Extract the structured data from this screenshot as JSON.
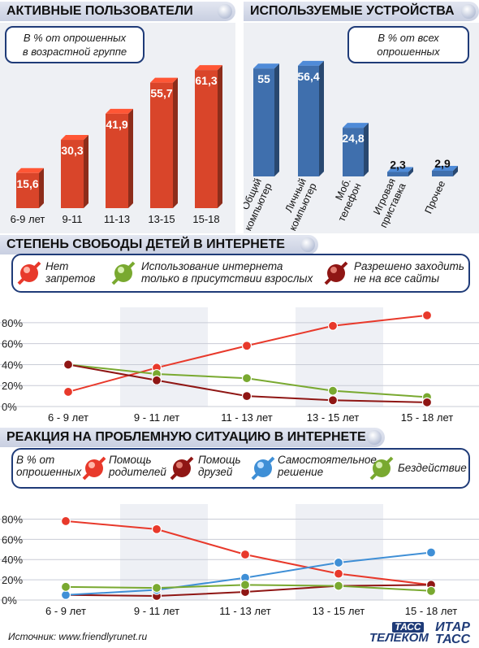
{
  "sections": {
    "active_users": "АКТИВНЫЕ ПОЛЬЗОВАТЕЛИ",
    "devices": "ИСПОЛЬЗУЕМЫЕ УСТРОЙСТВА",
    "freedom": "СТЕПЕНЬ СВОБОДЫ ДЕТЕЙ В ИНТЕРНЕТЕ",
    "reaction": "РЕАКЦИЯ НА ПРОБЛЕМНУЮ СИТУАЦИЮ В ИНТЕРНЕТЕ"
  },
  "notes": {
    "active_users": "В % от опрошенных\nв возрастной группе",
    "devices": "В % от всех\nопрошенных",
    "reaction": "В % от\nопрошенных"
  },
  "footer": {
    "source": "Источник: www.friendlyrunet.ru",
    "logo_tass_top": "ТАСС",
    "logo_tass_bottom": "ТЕЛЕКОМ",
    "logo_itar_top": "ИТАР",
    "logo_itar_bottom": "ТАСС"
  },
  "colors": {
    "red": "#e8392b",
    "green": "#79a930",
    "darkred": "#8f1614",
    "blue": "#3f8fd6",
    "bar_red": "#d9452a",
    "bar_blue": "#3f6fad"
  },
  "chart_data": [
    {
      "type": "bar",
      "title": "АКТИВНЫЕ ПОЛЬЗОВАТЕЛИ",
      "categories": [
        "6-9 лет",
        "9-11",
        "11-13",
        "13-15",
        "15-18"
      ],
      "values": [
        15.6,
        30.3,
        41.9,
        55.7,
        61.3
      ],
      "value_labels": [
        "15,6",
        "30,3",
        "41,9",
        "55,7",
        "61,3"
      ],
      "ylim": [
        0,
        70
      ],
      "color": "#d9452a"
    },
    {
      "type": "bar",
      "title": "ИСПОЛЬЗУЕМЫЕ УСТРОЙСТВА",
      "categories": [
        "Общий\nкомпьютер",
        "Личный\nкомпьютер",
        "Моб.\nтелефон",
        "Игровая\nприставка",
        "Прочее"
      ],
      "values": [
        55,
        56.4,
        24.8,
        2.3,
        2.9
      ],
      "value_labels": [
        "55",
        "56,4",
        "24,8",
        "2,3",
        "2,9"
      ],
      "ylim": [
        0,
        70
      ],
      "color": "#3f6fad"
    },
    {
      "type": "line",
      "title": "СТЕПЕНЬ СВОБОДЫ ДЕТЕЙ В ИНТЕРНЕТЕ",
      "categories": [
        "6 - 9 лет",
        "9 - 11 лет",
        "11 - 13 лет",
        "13 - 15 лет",
        "15 - 18 лет"
      ],
      "yticks": [
        "0%",
        "20%",
        "40%",
        "60%",
        "80%"
      ],
      "ylim": [
        0,
        90
      ],
      "series": [
        {
          "name": "Нет\nзапретов",
          "color": "#e8392b",
          "values": [
            14,
            37,
            58,
            77,
            87
          ]
        },
        {
          "name": "Использование интернета\nтолько в присутствии взрослых",
          "color": "#79a930",
          "values": [
            40,
            31,
            27,
            15,
            9
          ]
        },
        {
          "name": "Разрешено заходить\nне на все сайты",
          "color": "#8f1614",
          "values": [
            40,
            25,
            10,
            6,
            4
          ]
        }
      ]
    },
    {
      "type": "line",
      "title": "РЕАКЦИЯ НА ПРОБЛЕМНУЮ СИТУАЦИЮ В ИНТЕРНЕТЕ",
      "categories": [
        "6 - 9 лет",
        "9 - 11 лет",
        "11 - 13 лет",
        "13 - 15 лет",
        "15 - 18 лет"
      ],
      "yticks": [
        "0%",
        "20%",
        "40%",
        "60%",
        "80%"
      ],
      "ylim": [
        0,
        90
      ],
      "series": [
        {
          "name": "Помощь\nродителей",
          "color": "#e8392b",
          "values": [
            78,
            70,
            45,
            26,
            15
          ]
        },
        {
          "name": "Помощь\nдрузей",
          "color": "#8f1614",
          "values": [
            5,
            4,
            8,
            14,
            15
          ]
        },
        {
          "name": "Самостоятельное\nрешение",
          "color": "#3f8fd6",
          "values": [
            5,
            10,
            22,
            37,
            47
          ]
        },
        {
          "name": "Бездействие",
          "color": "#79a930",
          "values": [
            13,
            12,
            15,
            14,
            9
          ]
        }
      ]
    }
  ]
}
